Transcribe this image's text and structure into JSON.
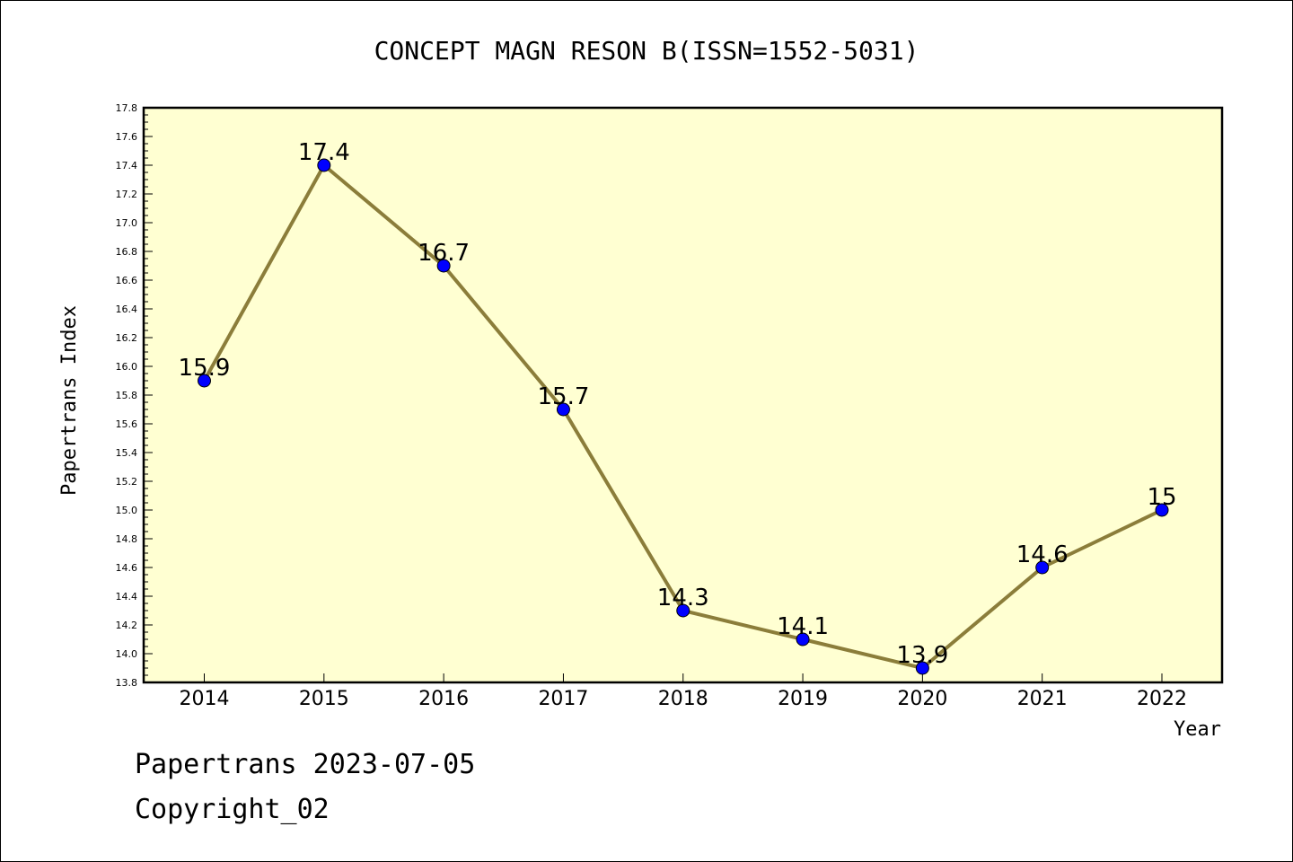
{
  "chart_data": {
    "type": "line",
    "title": "CONCEPT MAGN RESON B(ISSN=1552-5031)",
    "xlabel": "Year",
    "ylabel": "Papertrans Index",
    "categories": [
      "2014",
      "2015",
      "2016",
      "2017",
      "2018",
      "2019",
      "2020",
      "2021",
      "2022"
    ],
    "series": [
      {
        "values": [
          15.9,
          17.4,
          16.7,
          15.7,
          14.3,
          14.1,
          13.9,
          14.6,
          15.0
        ],
        "data_labels": [
          "15.9",
          "17.4",
          "16.7",
          "15.7",
          "14.3",
          "14.1",
          "13.9",
          "14.6",
          "15"
        ]
      }
    ],
    "ylim": [
      13.8,
      17.8
    ],
    "yticks": [
      "13.8",
      "14.0",
      "14.2",
      "14.4",
      "14.6",
      "14.8",
      "15.0",
      "15.2",
      "15.4",
      "15.6",
      "15.8",
      "16.0",
      "16.2",
      "16.4",
      "16.6",
      "16.8",
      "17.0",
      "17.2",
      "17.4",
      "17.6",
      "17.8"
    ],
    "grid": false,
    "legend": "none",
    "colors": {
      "plot_background": "#ffffd2",
      "line": "#8b7d3a",
      "marker": "#0000ff"
    }
  },
  "footer": {
    "line1": "Papertrans 2023-07-05",
    "line2": "Copyright_02"
  }
}
